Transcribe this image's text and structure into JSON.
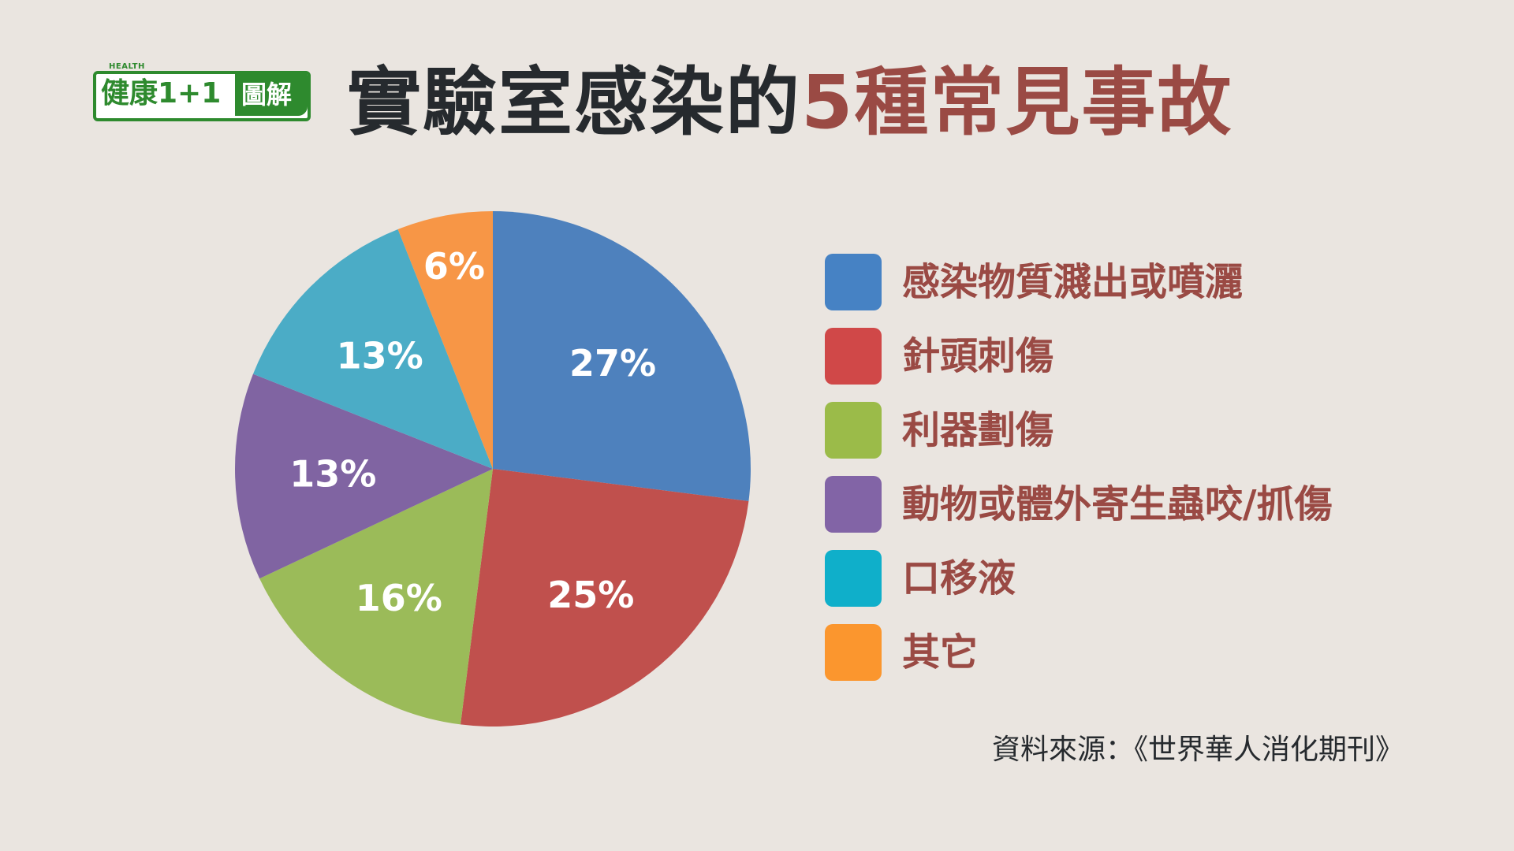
{
  "logo": {
    "health": "HEALTH",
    "main": "健康1+1",
    "tail": "圖解"
  },
  "title": {
    "dark": "實驗室感染的",
    "accent": "5種常見事故"
  },
  "chart_data": {
    "type": "pie",
    "title": "實驗室感染的5種常見事故",
    "legend_position": "right",
    "slices": [
      {
        "label": "感染物質濺出或噴灑",
        "value": 27,
        "value_label": "27%",
        "color": "#4e81bd"
      },
      {
        "label": "針頭刺傷",
        "value": 25,
        "value_label": "25%",
        "color": "#c0504d"
      },
      {
        "label": "利器劃傷",
        "value": 16,
        "value_label": "16%",
        "color": "#9bbb59"
      },
      {
        "label": "動物或體外寄生蟲咬/抓傷",
        "value": 13,
        "value_label": "13%",
        "color": "#8064a2"
      },
      {
        "label": "口移液",
        "value": 13,
        "value_label": "13%",
        "color": "#4bacc6"
      },
      {
        "label": "其它",
        "value": 6,
        "value_label": "6%",
        "color": "#f79646"
      }
    ]
  },
  "legend": {
    "swatch_colors": [
      "#4682c4",
      "#d04848",
      "#9bbb49",
      "#8264a6",
      "#0fafca",
      "#fb962e"
    ]
  },
  "colors": {
    "background": "#eae5e0",
    "title_dark": "#262a2e",
    "accent": "#9a4a44",
    "logo_green": "#2e8a2e"
  },
  "source": "資料來源：《世界華人消化期刊》"
}
